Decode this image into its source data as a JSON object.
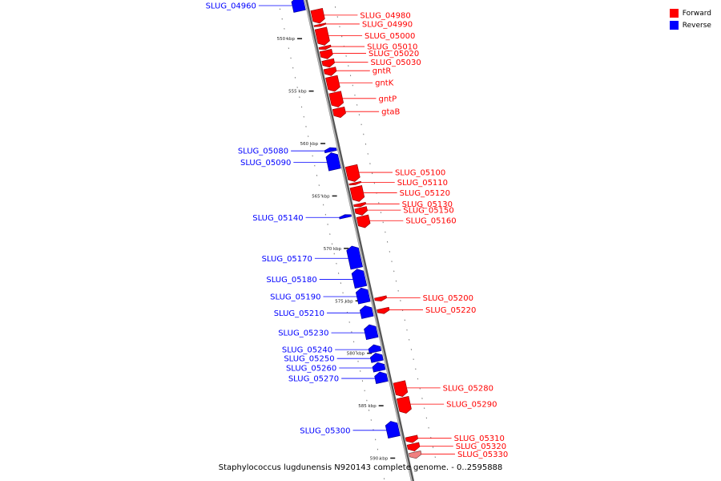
{
  "caption": "Staphylococcus lugdunensis N920143 complete genome. - 0..2595888",
  "legend": [
    {
      "label": "Forward",
      "color": "#ff0000"
    },
    {
      "label": "Reverse",
      "color": "#0000ff"
    }
  ],
  "colors": {
    "forward": "#ff0000",
    "reverse": "#0000ff",
    "forward_faded": "#f08080",
    "backbone": "#888888"
  },
  "scale_unit": "kbp",
  "kbp_ticks": [
    {
      "kbp": 550,
      "label": "550 kbp"
    },
    {
      "kbp": 555,
      "label": "555 kbp"
    },
    {
      "kbp": 560,
      "label": "560 kbp"
    },
    {
      "kbp": 565,
      "label": "565 kbp"
    },
    {
      "kbp": 570,
      "label": "570 kbp"
    },
    {
      "kbp": 575,
      "label": "575 kbp"
    },
    {
      "kbp": 580,
      "label": "580 kbp"
    },
    {
      "kbp": 585,
      "label": "585 kbp"
    },
    {
      "kbp": 590,
      "label": "590 kbp"
    }
  ],
  "genes": [
    {
      "name": "SLUG_04960",
      "strand": "reverse",
      "start_kbp": 546.2,
      "end_kbp": 547.5
    },
    {
      "name": "SLUG_04980",
      "strand": "forward",
      "start_kbp": 547.7,
      "end_kbp": 549.0
    },
    {
      "name": "SLUG_04990",
      "strand": "forward",
      "start_kbp": 549.1,
      "end_kbp": 549.3
    },
    {
      "name": "SLUG_05000",
      "strand": "forward",
      "start_kbp": 549.5,
      "end_kbp": 551.1
    },
    {
      "name": "SLUG_05010",
      "strand": "forward",
      "start_kbp": 551.2,
      "end_kbp": 551.5
    },
    {
      "name": "SLUG_05020",
      "strand": "forward",
      "start_kbp": 551.6,
      "end_kbp": 552.4
    },
    {
      "name": "SLUG_05030",
      "strand": "forward",
      "start_kbp": 552.5,
      "end_kbp": 553.2
    },
    {
      "name": "gntR",
      "strand": "forward",
      "start_kbp": 553.3,
      "end_kbp": 554.0
    },
    {
      "name": "gntK",
      "strand": "forward",
      "start_kbp": 554.1,
      "end_kbp": 555.5
    },
    {
      "name": "gntP",
      "strand": "forward",
      "start_kbp": 555.6,
      "end_kbp": 557.0
    },
    {
      "name": "gtaB",
      "strand": "forward",
      "start_kbp": 557.1,
      "end_kbp": 558.0
    },
    {
      "name": "SLUG_05080",
      "strand": "reverse",
      "start_kbp": 560.5,
      "end_kbp": 560.9
    },
    {
      "name": "SLUG_05090",
      "strand": "reverse",
      "start_kbp": 561.0,
      "end_kbp": 562.6
    },
    {
      "name": "SLUG_05100",
      "strand": "forward",
      "start_kbp": 562.6,
      "end_kbp": 564.1
    },
    {
      "name": "SLUG_05110",
      "strand": "forward",
      "start_kbp": 564.2,
      "end_kbp": 564.4
    },
    {
      "name": "SLUG_05120",
      "strand": "forward",
      "start_kbp": 564.6,
      "end_kbp": 566.0
    },
    {
      "name": "SLUG_05130",
      "strand": "forward",
      "start_kbp": 566.2,
      "end_kbp": 566.5
    },
    {
      "name": "SLUG_05140",
      "strand": "reverse",
      "start_kbp": 566.9,
      "end_kbp": 567.2
    },
    {
      "name": "SLUG_05150",
      "strand": "forward",
      "start_kbp": 566.6,
      "end_kbp": 567.3
    },
    {
      "name": "SLUG_05160",
      "strand": "forward",
      "start_kbp": 567.4,
      "end_kbp": 568.5
    },
    {
      "name": "SLUG_05170",
      "strand": "reverse",
      "start_kbp": 569.9,
      "end_kbp": 572.0
    },
    {
      "name": "SLUG_05180",
      "strand": "reverse",
      "start_kbp": 572.1,
      "end_kbp": 573.8
    },
    {
      "name": "SLUG_05190",
      "strand": "reverse",
      "start_kbp": 573.9,
      "end_kbp": 575.3
    },
    {
      "name": "SLUG_05200",
      "strand": "forward",
      "start_kbp": 575.1,
      "end_kbp": 575.5
    },
    {
      "name": "SLUG_05210",
      "strand": "reverse",
      "start_kbp": 575.6,
      "end_kbp": 576.7
    },
    {
      "name": "SLUG_05220",
      "strand": "forward",
      "start_kbp": 576.2,
      "end_kbp": 576.7
    },
    {
      "name": "SLUG_05230",
      "strand": "reverse",
      "start_kbp": 577.4,
      "end_kbp": 578.7
    },
    {
      "name": "SLUG_05240",
      "strand": "reverse",
      "start_kbp": 579.3,
      "end_kbp": 580.0
    },
    {
      "name": "SLUG_05250",
      "strand": "reverse",
      "start_kbp": 580.1,
      "end_kbp": 580.9
    },
    {
      "name": "SLUG_05260",
      "strand": "reverse",
      "start_kbp": 581.0,
      "end_kbp": 581.8
    },
    {
      "name": "SLUG_05270",
      "strand": "reverse",
      "start_kbp": 581.9,
      "end_kbp": 582.9
    },
    {
      "name": "SLUG_05280",
      "strand": "forward",
      "start_kbp": 583.2,
      "end_kbp": 584.6
    },
    {
      "name": "SLUG_05290",
      "strand": "forward",
      "start_kbp": 584.7,
      "end_kbp": 586.2
    },
    {
      "name": "SLUG_05300",
      "strand": "reverse",
      "start_kbp": 586.6,
      "end_kbp": 588.1
    },
    {
      "name": "SLUG_05310",
      "strand": "forward",
      "start_kbp": 588.4,
      "end_kbp": 589.0
    },
    {
      "name": "SLUG_05320",
      "strand": "forward",
      "start_kbp": 589.1,
      "end_kbp": 589.8
    },
    {
      "name": "SLUG_05330",
      "strand": "forward",
      "start_kbp": 589.9,
      "end_kbp": 590.5
    }
  ]
}
